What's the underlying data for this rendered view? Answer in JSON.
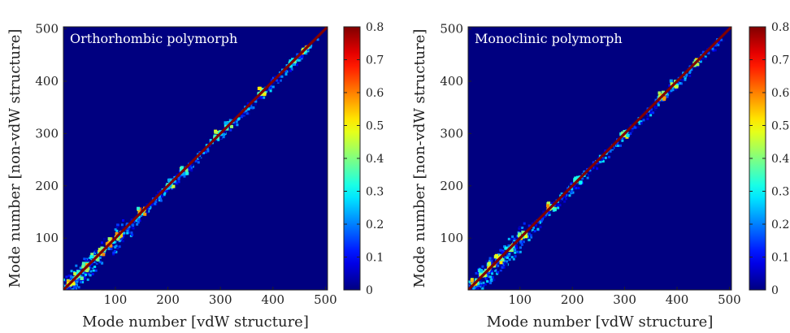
{
  "chart_data": [
    {
      "type": "heatmap",
      "panel_label": "Orthorhombic polymorph",
      "xlabel": "Mode number [vdW structure]",
      "ylabel": "Mode number [non-vdW structure]",
      "xlim": [
        1,
        504
      ],
      "ylim": [
        1,
        504
      ],
      "x_ticks": [
        "100",
        "200",
        "300",
        "400",
        "500"
      ],
      "y_ticks": [
        "100",
        "200",
        "300",
        "400",
        "500"
      ],
      "colorbar": {
        "range": [
          0,
          0.8
        ],
        "ticks": [
          "0",
          "0.1",
          "0.2",
          "0.3",
          "0.4",
          "0.5",
          "0.6",
          "0.7",
          "0.8"
        ],
        "colormap": "jet"
      },
      "background_value": 0,
      "diagonal_value": 0.8,
      "hotspots": [
        {
          "x": 15,
          "y": 15,
          "value": 0.6
        },
        {
          "x": 30,
          "y": 30,
          "value": 0.5
        },
        {
          "x": 45,
          "y": 45,
          "value": 0.55
        },
        {
          "x": 60,
          "y": 62,
          "value": 0.5
        },
        {
          "x": 75,
          "y": 75,
          "value": 0.55
        },
        {
          "x": 90,
          "y": 92,
          "value": 0.6
        },
        {
          "x": 105,
          "y": 105,
          "value": 0.55
        },
        {
          "x": 150,
          "y": 152,
          "value": 0.6
        },
        {
          "x": 205,
          "y": 205,
          "value": 0.45
        },
        {
          "x": 230,
          "y": 228,
          "value": 0.4
        },
        {
          "x": 295,
          "y": 298,
          "value": 0.5
        },
        {
          "x": 315,
          "y": 315,
          "value": 0.4
        },
        {
          "x": 380,
          "y": 380,
          "value": 0.6
        },
        {
          "x": 435,
          "y": 435,
          "value": 0.4
        },
        {
          "x": 460,
          "y": 460,
          "value": 0.55
        }
      ]
    },
    {
      "type": "heatmap",
      "panel_label": "Monoclinic polymorph",
      "xlabel": "Mode number [vdW structure]",
      "ylabel": "Mode number [non-vdW structure]",
      "xlim": [
        1,
        504
      ],
      "ylim": [
        1,
        504
      ],
      "x_ticks": [
        "100",
        "200",
        "300",
        "400",
        "500"
      ],
      "y_ticks": [
        "100",
        "200",
        "300",
        "400",
        "500"
      ],
      "colorbar": {
        "range": [
          0,
          0.8
        ],
        "ticks": [
          "0",
          "0.1",
          "0.2",
          "0.3",
          "0.4",
          "0.5",
          "0.6",
          "0.7",
          "0.8"
        ],
        "colormap": "jet"
      },
      "background_value": 0,
      "diagonal_value": 0.8,
      "hotspots": [
        {
          "x": 15,
          "y": 15,
          "value": 0.6
        },
        {
          "x": 30,
          "y": 32,
          "value": 0.5
        },
        {
          "x": 45,
          "y": 45,
          "value": 0.55
        },
        {
          "x": 60,
          "y": 60,
          "value": 0.5
        },
        {
          "x": 80,
          "y": 82,
          "value": 0.55
        },
        {
          "x": 105,
          "y": 105,
          "value": 0.5
        },
        {
          "x": 160,
          "y": 160,
          "value": 0.55
        },
        {
          "x": 210,
          "y": 212,
          "value": 0.45
        },
        {
          "x": 300,
          "y": 298,
          "value": 0.5
        },
        {
          "x": 370,
          "y": 372,
          "value": 0.55
        },
        {
          "x": 395,
          "y": 395,
          "value": 0.45
        },
        {
          "x": 435,
          "y": 435,
          "value": 0.5
        }
      ]
    }
  ]
}
